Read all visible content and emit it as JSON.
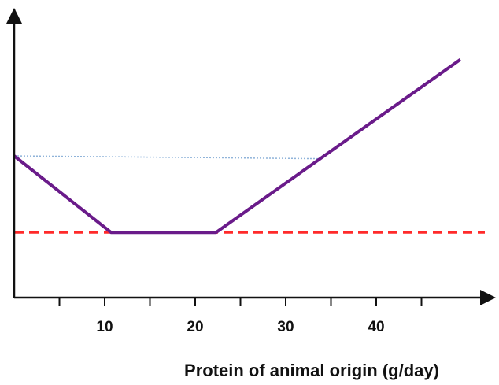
{
  "chart_data": {
    "type": "line",
    "title": "",
    "xlabel": "Protein of animal origin (g/day)",
    "ylabel": "",
    "xlim": [
      0,
      52
    ],
    "ylim": [
      0,
      10
    ],
    "x_ticks": [
      5,
      10,
      15,
      20,
      25,
      30,
      35,
      40,
      45
    ],
    "x_tick_labels": [
      "",
      "10",
      "",
      "20",
      "",
      "30",
      "",
      "40",
      ""
    ],
    "grid": false,
    "legend": "none",
    "series": [
      {
        "style": "solid",
        "color": "#6a1b8a",
        "x": [
          0,
          10.7,
          22.3,
          49.3
        ],
        "y": [
          5.0,
          2.3,
          2.3,
          8.4
        ]
      },
      {
        "style": "dashed",
        "color": "#ff2a2a",
        "x": [
          0,
          52
        ],
        "y": [
          2.3,
          2.3
        ]
      },
      {
        "style": "dotted",
        "color": "#8fb3d9",
        "x": [
          0,
          33.6
        ],
        "y": [
          5.0,
          4.9
        ]
      }
    ]
  }
}
